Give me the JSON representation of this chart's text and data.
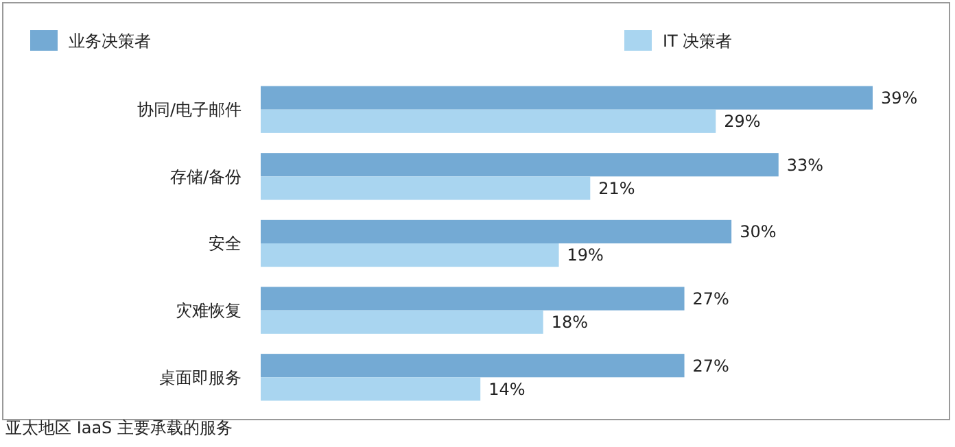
{
  "chart_data": {
    "type": "bar",
    "orientation": "horizontal",
    "categories": [
      "协同/电子邮件",
      "存储/备份",
      "安全",
      "灾难恢复",
      "桌面即服务"
    ],
    "series": [
      {
        "name": "业务决策者",
        "color": "#74aad4",
        "values": [
          39,
          33,
          30,
          27,
          27
        ],
        "value_labels": [
          "39%",
          "33%",
          "30%",
          "27%",
          "27%"
        ]
      },
      {
        "name": "IT 决策者",
        "color": "#a9d5f0",
        "values": [
          29,
          21,
          19,
          18,
          14
        ],
        "value_labels": [
          "29%",
          "21%",
          "19%",
          "18%",
          "14%"
        ]
      }
    ],
    "legend": "top",
    "annotations": [
      "亚太地区 IaaS 主要承载的服务"
    ]
  }
}
